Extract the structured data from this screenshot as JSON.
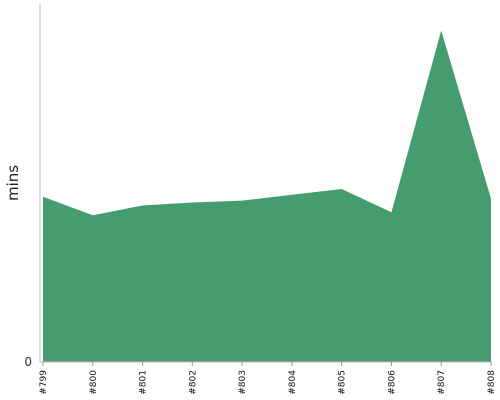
{
  "chart_data": {
    "type": "area",
    "categories": [
      "#799",
      "#800",
      "#801",
      "#802",
      "#803",
      "#804",
      "#805",
      "#806",
      "#807",
      "#808"
    ],
    "series": [
      {
        "values": [
          170,
          151,
          161,
          164,
          166,
          172,
          178,
          154,
          341,
          168
        ],
        "color": "#459c6e"
      }
    ],
    "xlabel": "",
    "ylabel": "mins",
    "ylim": [
      0,
      360
    ],
    "y_ticks": [
      "0"
    ],
    "grid": false,
    "legend": "none"
  }
}
